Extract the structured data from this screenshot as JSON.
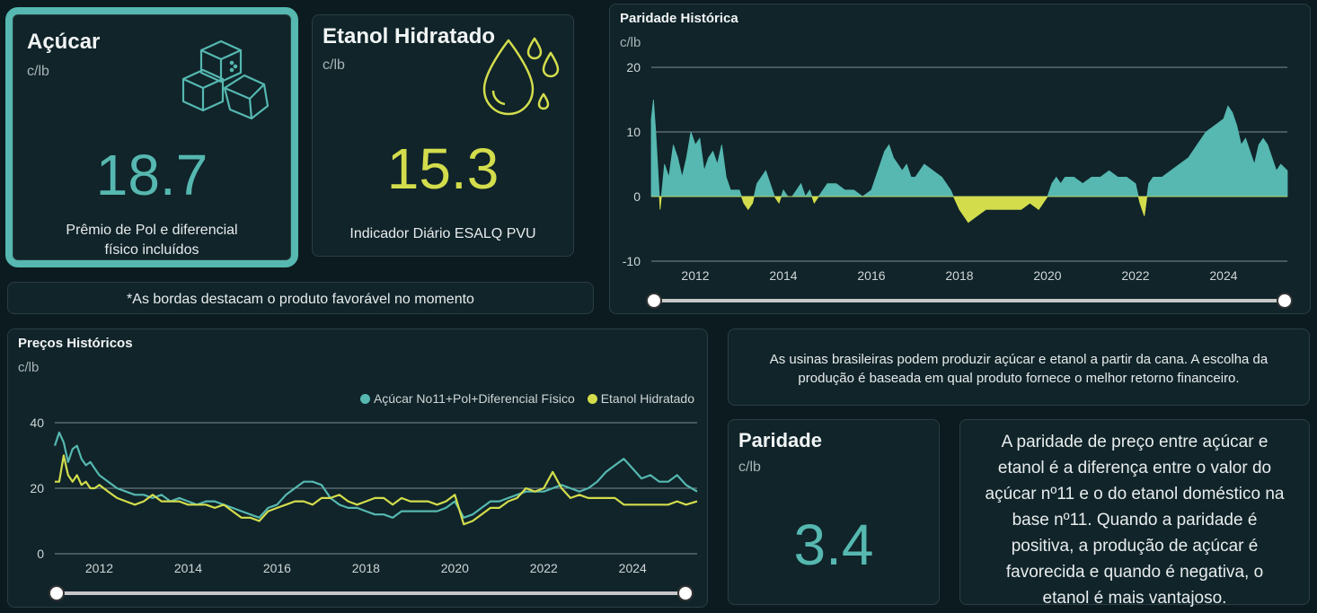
{
  "colors": {
    "teal": "#56b8b0",
    "yellow": "#d3dd4c",
    "background": "#0b1b1f",
    "card": "#10242a"
  },
  "acucar": {
    "title": "Açúcar",
    "unit": "c/lb",
    "value": "18.7",
    "caption_line1": "Prêmio de Pol e diferencial",
    "caption_line2": "físico incluídos",
    "icon": "sugar-cubes-icon"
  },
  "etanol": {
    "title": "Etanol Hidratado",
    "unit": "c/lb",
    "value": "15.3",
    "caption": "Indicador Diário ESALQ PVU",
    "icon": "drops-icon"
  },
  "border_note": "*As bordas destacam o produto favorável no momento",
  "intro_note": {
    "line1": "As usinas brasileiras podem produzir açúcar e etanol a partir da cana. A escolha da",
    "line2": "produção é baseada em qual produto fornece o melhor retorno financeiro."
  },
  "paridade": {
    "title": "Paridade",
    "unit": "c/lb",
    "value": "3.4"
  },
  "paridade_text": [
    "A paridade de preço entre açúcar e",
    "etanol é a diferença entre o valor do",
    "açúcar nº11 e o do etanol doméstico na",
    "base nº11. Quando a paridade é",
    "positiva, a produção de açúcar é",
    "favorecida e quando é negativa, o",
    "etanol é mais vantajoso."
  ],
  "chart_data": [
    {
      "id": "paridade_historica",
      "type": "area",
      "title": "Paridade Histórica",
      "ylabel": "c/lb",
      "ylim": [
        -10,
        20
      ],
      "yticks": [
        -10,
        0,
        10,
        20
      ],
      "xlim": [
        2011.0,
        2025.45
      ],
      "xticks": [
        "2012",
        "2014",
        "2016",
        "2018",
        "2020",
        "2022",
        "2024"
      ],
      "positive_color": "#56b8b0",
      "negative_color": "#d3dd4c",
      "x": [
        2011.0,
        2011.05,
        2011.1,
        2011.2,
        2011.3,
        2011.4,
        2011.5,
        2011.6,
        2011.7,
        2011.8,
        2011.9,
        2012.0,
        2012.1,
        2012.2,
        2012.3,
        2012.4,
        2012.5,
        2012.6,
        2012.7,
        2012.8,
        2012.9,
        2013.0,
        2013.1,
        2013.2,
        2013.3,
        2013.4,
        2013.5,
        2013.6,
        2013.7,
        2013.8,
        2013.9,
        2014.0,
        2014.1,
        2014.2,
        2014.3,
        2014.4,
        2014.5,
        2014.6,
        2014.7,
        2014.8,
        2014.9,
        2015.0,
        2015.2,
        2015.4,
        2015.6,
        2015.8,
        2016.0,
        2016.1,
        2016.2,
        2016.3,
        2016.4,
        2016.5,
        2016.6,
        2016.7,
        2016.8,
        2016.9,
        2017.0,
        2017.2,
        2017.4,
        2017.6,
        2017.8,
        2018.0,
        2018.2,
        2018.4,
        2018.6,
        2018.8,
        2019.0,
        2019.2,
        2019.4,
        2019.6,
        2019.8,
        2020.0,
        2020.1,
        2020.2,
        2020.3,
        2020.4,
        2020.6,
        2020.8,
        2021.0,
        2021.2,
        2021.4,
        2021.6,
        2021.8,
        2022.0,
        2022.1,
        2022.2,
        2022.3,
        2022.4,
        2022.6,
        2022.8,
        2023.0,
        2023.2,
        2023.4,
        2023.6,
        2023.8,
        2024.0,
        2024.1,
        2024.2,
        2024.3,
        2024.4,
        2024.5,
        2024.6,
        2024.7,
        2024.8,
        2024.9,
        2025.0,
        2025.1,
        2025.2,
        2025.3,
        2025.45
      ],
      "y": [
        12,
        15,
        10,
        -2,
        5,
        3,
        8,
        6,
        3,
        6,
        10,
        8,
        9,
        4,
        6,
        7,
        5,
        8,
        3,
        1,
        1,
        1,
        -1,
        -2,
        -1,
        2,
        3,
        4,
        2,
        0,
        -1,
        1,
        0,
        0,
        1,
        2,
        0,
        1,
        -1,
        0,
        1,
        2,
        2,
        1,
        1,
        0,
        1,
        3,
        5,
        7,
        8,
        6,
        5,
        4,
        5,
        3,
        3,
        5,
        4,
        3,
        1,
        -2,
        -4,
        -3,
        -2,
        -2,
        -2,
        -2,
        -2,
        -1,
        -2,
        0,
        2,
        3,
        2,
        3,
        3,
        2,
        3,
        3,
        4,
        3,
        3,
        2,
        -1,
        -3,
        2,
        3,
        3,
        4,
        5,
        6,
        8,
        10,
        11,
        12,
        14,
        13,
        11,
        8,
        9,
        7,
        5,
        8,
        9,
        8,
        6,
        4,
        5,
        4
      ]
    },
    {
      "id": "precos_historicos",
      "type": "line",
      "title": "Preços Históricos",
      "ylabel": "c/lb",
      "ylim": [
        0,
        40
      ],
      "yticks": [
        0,
        20,
        40
      ],
      "xlim": [
        2011.0,
        2025.45
      ],
      "xticks": [
        "2012",
        "2014",
        "2016",
        "2018",
        "2020",
        "2022",
        "2024"
      ],
      "legend_position": "top-right",
      "series": [
        {
          "name": "Açúcar No11+Pol+Diferencial Físico",
          "color": "#56b8b0",
          "x": [
            2011.0,
            2011.1,
            2011.2,
            2011.3,
            2011.4,
            2011.5,
            2011.6,
            2011.7,
            2011.8,
            2011.9,
            2012.0,
            2012.2,
            2012.4,
            2012.6,
            2012.8,
            2013.0,
            2013.2,
            2013.4,
            2013.6,
            2013.8,
            2014.0,
            2014.2,
            2014.4,
            2014.6,
            2014.8,
            2015.0,
            2015.2,
            2015.4,
            2015.6,
            2015.8,
            2016.0,
            2016.2,
            2016.4,
            2016.6,
            2016.8,
            2017.0,
            2017.2,
            2017.4,
            2017.6,
            2017.8,
            2018.0,
            2018.2,
            2018.4,
            2018.6,
            2018.8,
            2019.0,
            2019.2,
            2019.4,
            2019.6,
            2019.8,
            2020.0,
            2020.2,
            2020.4,
            2020.6,
            2020.8,
            2021.0,
            2021.2,
            2021.4,
            2021.6,
            2021.8,
            2022.0,
            2022.2,
            2022.4,
            2022.6,
            2022.8,
            2023.0,
            2023.2,
            2023.4,
            2023.6,
            2023.8,
            2024.0,
            2024.2,
            2024.4,
            2024.6,
            2024.8,
            2025.0,
            2025.2,
            2025.45
          ],
          "y": [
            33,
            37,
            34,
            28,
            32,
            33,
            29,
            27,
            28,
            26,
            24,
            22,
            20,
            19,
            18,
            18,
            17,
            18,
            16,
            17,
            16,
            15,
            16,
            16,
            15,
            14,
            13,
            12,
            11,
            14,
            15,
            18,
            20,
            22,
            22,
            21,
            17,
            15,
            14,
            14,
            13,
            12,
            12,
            11,
            13,
            13,
            13,
            13,
            13,
            14,
            16,
            11,
            12,
            14,
            16,
            16,
            17,
            18,
            19,
            19,
            19,
            20,
            21,
            20,
            19,
            20,
            22,
            25,
            27,
            29,
            26,
            23,
            24,
            22,
            22,
            24,
            21,
            19
          ]
        },
        {
          "name": "Etanol Hidratado",
          "color": "#d3dd4c",
          "x": [
            2011.0,
            2011.1,
            2011.2,
            2011.3,
            2011.4,
            2011.5,
            2011.6,
            2011.7,
            2011.8,
            2011.9,
            2012.0,
            2012.2,
            2012.4,
            2012.6,
            2012.8,
            2013.0,
            2013.2,
            2013.4,
            2013.6,
            2013.8,
            2014.0,
            2014.2,
            2014.4,
            2014.6,
            2014.8,
            2015.0,
            2015.2,
            2015.4,
            2015.6,
            2015.8,
            2016.0,
            2016.2,
            2016.4,
            2016.6,
            2016.8,
            2017.0,
            2017.2,
            2017.4,
            2017.6,
            2017.8,
            2018.0,
            2018.2,
            2018.4,
            2018.6,
            2018.8,
            2019.0,
            2019.2,
            2019.4,
            2019.6,
            2019.8,
            2020.0,
            2020.2,
            2020.4,
            2020.6,
            2020.8,
            2021.0,
            2021.2,
            2021.4,
            2021.6,
            2021.8,
            2022.0,
            2022.2,
            2022.4,
            2022.6,
            2022.8,
            2023.0,
            2023.2,
            2023.4,
            2023.6,
            2023.8,
            2024.0,
            2024.2,
            2024.4,
            2024.6,
            2024.8,
            2025.0,
            2025.2,
            2025.45
          ],
          "y": [
            22,
            22,
            30,
            24,
            22,
            24,
            21,
            22,
            20,
            20,
            21,
            19,
            17,
            16,
            15,
            16,
            18,
            16,
            16,
            16,
            15,
            15,
            15,
            14,
            15,
            13,
            11,
            11,
            10,
            13,
            14,
            15,
            16,
            16,
            15,
            17,
            17,
            18,
            16,
            15,
            16,
            17,
            17,
            15,
            17,
            16,
            16,
            16,
            15,
            16,
            18,
            9,
            10,
            12,
            14,
            14,
            16,
            17,
            20,
            19,
            20,
            25,
            20,
            17,
            18,
            17,
            17,
            17,
            17,
            15,
            15,
            15,
            15,
            15,
            15,
            16,
            15,
            16
          ]
        }
      ]
    }
  ]
}
